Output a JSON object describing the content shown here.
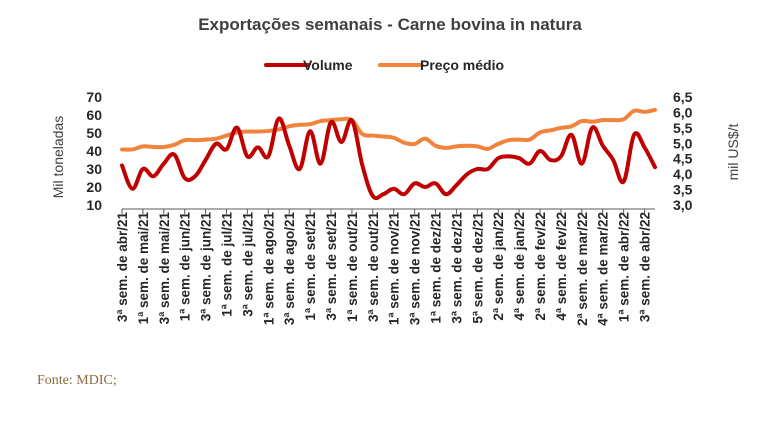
{
  "source_note": "Fonte: MDIC;",
  "colors": {
    "volume": "#c00000",
    "price": "#f0843c",
    "text": "#262626"
  },
  "chart_data": {
    "type": "line",
    "title": "Exportações semanais - Carne bovina in natura",
    "legend_position": "top",
    "grid": false,
    "ylabel": "Mil toneladas",
    "y2label": "mil US$/t",
    "ylim": [
      10,
      70
    ],
    "y2lim": [
      3.0,
      6.5
    ],
    "yticks": [
      "70",
      "60",
      "50",
      "40",
      "30",
      "20",
      "10"
    ],
    "y2ticks": [
      "6,5",
      "6,0",
      "5,5",
      "5,0",
      "4,5",
      "4,0",
      "3,5",
      "3,0"
    ],
    "x_tick_labels": [
      "3ª sem. de abr/21",
      "1ª sem. de mai/21",
      "3ª sem. de mai/21",
      "1ª sem. de jun/21",
      "3ª sem. de jun/21",
      "1ª sem. de jul/21",
      "3ª sem. de jul/21",
      "1ª sem. de ago/21",
      "3ª sem. de ago/21",
      "1ª sem. de set/21",
      "3ª sem. de set/21",
      "1ª sem. de out/21",
      "3ª sem. de out/21",
      "1ª sem. de nov/21",
      "3ª sem. de nov/21",
      "1ª sem. de dez/21",
      "3ª sem. de dez/21",
      "5ª sem. de dez/21",
      "2ª sem. de jan/22",
      "4ª sem. de jan/22",
      "2ª sem. de fev/22",
      "4ª sem. de fev/22",
      "2ª sem. de mar/22",
      "4ª sem. de mar/22",
      "1ª sem. de abr/22",
      "3ª sem. de abr/22"
    ],
    "series": [
      {
        "name": "Volume",
        "axis": "left",
        "values": [
          32,
          19,
          30,
          26,
          33,
          38,
          25,
          26,
          35,
          44,
          41,
          53,
          37,
          42,
          37,
          58,
          43,
          30,
          51,
          33,
          56,
          45,
          57,
          32,
          15,
          16,
          19,
          16,
          22,
          20,
          22,
          16,
          21,
          27,
          30,
          30,
          36,
          37,
          36,
          33,
          40,
          35,
          37,
          49,
          33,
          53,
          43,
          35,
          23,
          49,
          42,
          31
        ]
      },
      {
        "name": "Preço médio",
        "axis": "right",
        "values": [
          4.8,
          4.8,
          4.9,
          4.88,
          4.88,
          4.95,
          5.1,
          5.1,
          5.12,
          5.15,
          5.25,
          5.35,
          5.38,
          5.38,
          5.4,
          5.45,
          5.55,
          5.6,
          5.62,
          5.72,
          5.75,
          5.78,
          5.75,
          5.3,
          5.25,
          5.22,
          5.18,
          5.02,
          4.98,
          5.15,
          4.92,
          4.85,
          4.9,
          4.92,
          4.9,
          4.82,
          4.98,
          5.1,
          5.12,
          5.12,
          5.35,
          5.42,
          5.5,
          5.55,
          5.72,
          5.7,
          5.75,
          5.75,
          5.78,
          6.05,
          6.02,
          6.08
        ]
      }
    ]
  }
}
